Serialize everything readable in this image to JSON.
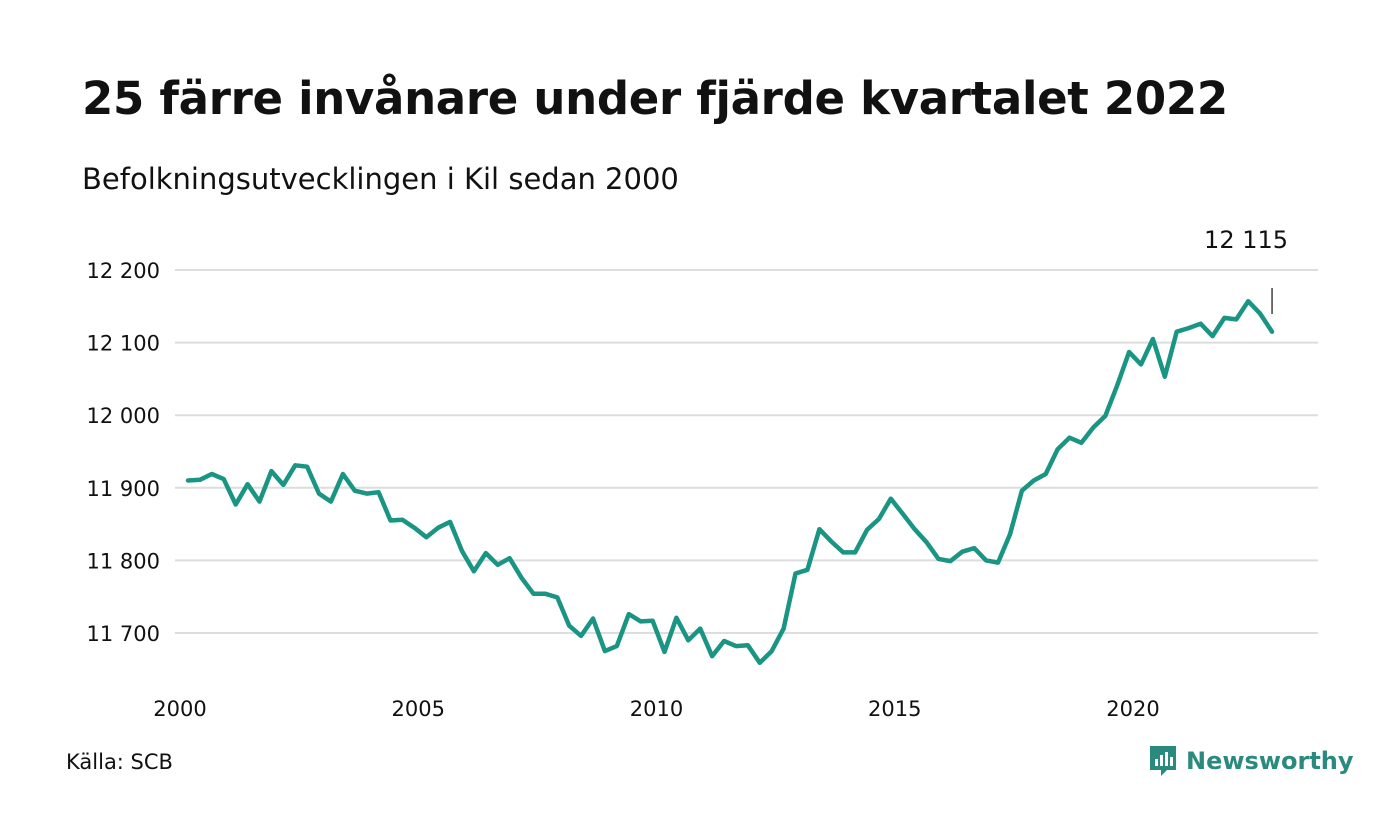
{
  "header": {
    "title": "25 färre invånare under fjärde kvartalet 2022",
    "subtitle": "Befolkningsutvecklingen i Kil sedan 2000"
  },
  "footer": {
    "source": "Källa: SCB",
    "brand": "Newsworthy"
  },
  "colors": {
    "line": "#1a9483",
    "grid": "#dddddd",
    "brand": "#2a8a7e"
  },
  "chart_data": {
    "type": "line",
    "title": "25 färre invånare under fjärde kvartalet 2022",
    "subtitle": "Befolkningsutvecklingen i Kil sedan 2000",
    "xlabel": "",
    "ylabel": "",
    "xlim": [
      2000,
      2023.5
    ],
    "ylim": [
      11650,
      12200
    ],
    "yticks": [
      11700,
      11800,
      11900,
      12000,
      12100,
      12200
    ],
    "ytick_labels": [
      "11 700",
      "11 800",
      "11 900",
      "12 000",
      "12 100",
      "12 200"
    ],
    "xticks": [
      2000,
      2005,
      2010,
      2015,
      2020
    ],
    "xtick_labels": [
      "2000",
      "2005",
      "2010",
      "2015",
      "2020"
    ],
    "grid": true,
    "annotation": {
      "label": "12 115",
      "value": 12115
    },
    "series": [
      {
        "x": [
          2000,
          2000.25,
          2000.5,
          2000.75,
          2001,
          2001.25,
          2001.5,
          2001.75,
          2002,
          2002.25,
          2002.5,
          2002.75,
          2003,
          2003.25,
          2003.5,
          2003.75,
          2004,
          2004.25,
          2004.5,
          2004.75,
          2005,
          2005.25,
          2005.5,
          2005.75,
          2006,
          2006.25,
          2006.5,
          2006.75,
          2007,
          2007.25,
          2007.5,
          2007.75,
          2008,
          2008.25,
          2008.5,
          2008.75,
          2009,
          2009.25,
          2009.5,
          2009.75,
          2010,
          2010.25,
          2010.5,
          2010.75,
          2011,
          2011.25,
          2011.5,
          2011.75,
          2012,
          2012.25,
          2012.5,
          2012.75,
          2013,
          2013.25,
          2013.5,
          2013.75,
          2014,
          2014.25,
          2014.5,
          2014.75,
          2015,
          2015.25,
          2015.5,
          2015.75,
          2016,
          2016.25,
          2016.5,
          2016.75,
          2017,
          2017.25,
          2017.5,
          2017.75,
          2018,
          2018.25,
          2018.5,
          2018.75,
          2019,
          2019.25,
          2019.5,
          2019.75,
          2020,
          2020.25,
          2020.5,
          2020.75,
          2021,
          2021.25,
          2021.5,
          2021.75,
          2022,
          2022.25,
          2022.5,
          2022.75
        ],
        "values": [
          11910,
          11911,
          11919,
          11912,
          11877,
          11905,
          11881,
          11923,
          11904,
          11931,
          11929,
          11892,
          11881,
          11919,
          11896,
          11892,
          11894,
          11855,
          11856,
          11845,
          11832,
          11845,
          11853,
          11813,
          11785,
          11810,
          11794,
          11803,
          11776,
          11754,
          11754,
          11749,
          11710,
          11696,
          11720,
          11675,
          11682,
          11726,
          11716,
          11717,
          11674,
          11721,
          11690,
          11706,
          11668,
          11689,
          11682,
          11683,
          11659,
          11675,
          11706,
          11782,
          11787,
          11843,
          11826,
          11811,
          11811,
          11842,
          11857,
          11885,
          11864,
          11843,
          11825,
          11802,
          11799,
          11812,
          11817,
          11800,
          11797,
          11836,
          11896,
          11910,
          11919,
          11953,
          11969,
          11962,
          11983,
          11999,
          12041,
          12087,
          12070,
          12105,
          12053,
          12115,
          12120,
          12126,
          12109,
          12134,
          12132,
          12157,
          12140,
          12115
        ]
      }
    ]
  }
}
